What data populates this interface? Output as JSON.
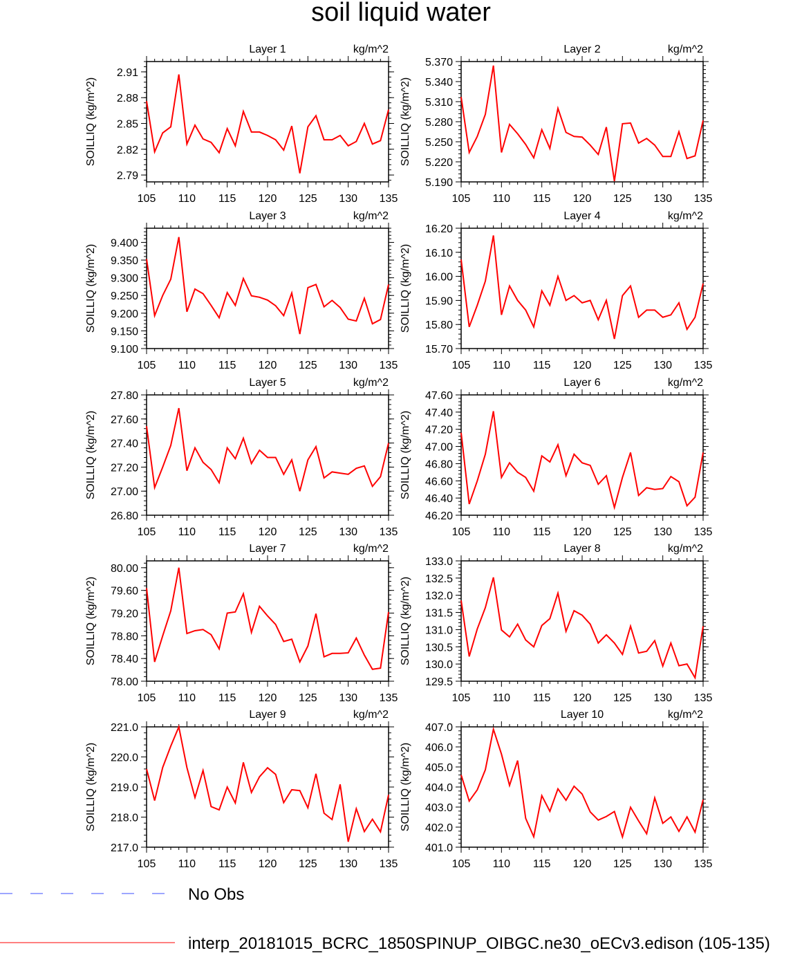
{
  "title": "soil liquid water",
  "legend": [
    {
      "label": "No Obs",
      "color": "#3b4cff",
      "dash": true
    },
    {
      "label": "interp_20181015_BCRC_1850SPINUP_OIBGC.ne30_oECv3.edison (105-135)",
      "color": "#ff0000",
      "dash": false
    }
  ],
  "chart_data": [
    {
      "type": "line",
      "title": "Layer 1",
      "units": "kg/m^2",
      "ylabel": "SOILLIQ  (kg/m^2)",
      "xlim": [
        105,
        135
      ],
      "xticks": [
        105,
        110,
        115,
        120,
        125,
        130,
        135
      ],
      "ylim": [
        2.782,
        2.922
      ],
      "yticks": [
        "2.79",
        "2.82",
        "2.85",
        "2.88",
        "2.91"
      ],
      "ytick_values": [
        2.79,
        2.82,
        2.85,
        2.88,
        2.91
      ],
      "x": [
        105,
        106,
        107,
        108,
        109,
        110,
        111,
        112,
        113,
        114,
        115,
        116,
        117,
        118,
        119,
        120,
        121,
        122,
        123,
        124,
        125,
        126,
        127,
        128,
        129,
        130,
        131,
        132,
        133,
        134,
        135
      ],
      "series": [
        {
          "values": [
            2.876,
            2.817,
            2.839,
            2.846,
            2.907,
            2.826,
            2.848,
            2.832,
            2.828,
            2.816,
            2.844,
            2.824,
            2.864,
            2.84,
            2.84,
            2.836,
            2.831,
            2.819,
            2.847,
            2.792,
            2.846,
            2.859,
            2.831,
            2.831,
            2.836,
            2.824,
            2.829,
            2.85,
            2.826,
            2.83,
            2.866
          ],
          "color": "#ff0000"
        }
      ]
    },
    {
      "type": "line",
      "title": "Layer 2",
      "units": "kg/m^2",
      "ylabel": "SOILLIQ  (kg/m^2)",
      "xlim": [
        105,
        135
      ],
      "xticks": [
        105,
        110,
        115,
        120,
        125,
        130,
        135
      ],
      "ylim": [
        5.19,
        5.37
      ],
      "yticks": [
        "5.190",
        "5.220",
        "5.250",
        "5.280",
        "5.310",
        "5.340",
        "5.370"
      ],
      "ytick_values": [
        5.19,
        5.22,
        5.25,
        5.28,
        5.31,
        5.34,
        5.37
      ],
      "x": [
        105,
        106,
        107,
        108,
        109,
        110,
        111,
        112,
        113,
        114,
        115,
        116,
        117,
        118,
        119,
        120,
        121,
        122,
        123,
        124,
        125,
        126,
        127,
        128,
        129,
        130,
        131,
        132,
        133,
        134,
        135
      ],
      "series": [
        {
          "values": [
            5.317,
            5.234,
            5.258,
            5.291,
            5.364,
            5.234,
            5.276,
            5.262,
            5.246,
            5.226,
            5.268,
            5.24,
            5.3,
            5.264,
            5.258,
            5.257,
            5.245,
            5.231,
            5.272,
            5.191,
            5.277,
            5.278,
            5.248,
            5.255,
            5.245,
            5.228,
            5.228,
            5.265,
            5.225,
            5.229,
            5.282
          ],
          "color": "#ff0000"
        }
      ]
    },
    {
      "type": "line",
      "title": "Layer 3",
      "units": "kg/m^2",
      "ylabel": "SOILLIQ  (kg/m^2)",
      "xlim": [
        105,
        135
      ],
      "xticks": [
        105,
        110,
        115,
        120,
        125,
        130,
        135
      ],
      "ylim": [
        9.1,
        9.44
      ],
      "yticks": [
        "9.100",
        "9.150",
        "9.200",
        "9.250",
        "9.300",
        "9.350",
        "9.400"
      ],
      "ytick_values": [
        9.1,
        9.15,
        9.2,
        9.25,
        9.3,
        9.35,
        9.4
      ],
      "x": [
        105,
        106,
        107,
        108,
        109,
        110,
        111,
        112,
        113,
        114,
        115,
        116,
        117,
        118,
        119,
        120,
        121,
        122,
        123,
        124,
        125,
        126,
        127,
        128,
        129,
        130,
        131,
        132,
        133,
        134,
        135
      ],
      "series": [
        {
          "values": [
            9.353,
            9.193,
            9.25,
            9.296,
            9.415,
            9.204,
            9.268,
            9.255,
            9.222,
            9.187,
            9.258,
            9.222,
            9.298,
            9.249,
            9.245,
            9.237,
            9.221,
            9.193,
            9.257,
            9.141,
            9.272,
            9.281,
            9.218,
            9.236,
            9.216,
            9.183,
            9.178,
            9.242,
            9.17,
            9.182,
            9.281
          ],
          "color": "#ff0000"
        }
      ]
    },
    {
      "type": "line",
      "title": "Layer 4",
      "units": "kg/m^2",
      "ylabel": "SOILLIQ  (kg/m^2)",
      "xlim": [
        105,
        135
      ],
      "xticks": [
        105,
        110,
        115,
        120,
        125,
        130,
        135
      ],
      "ylim": [
        15.7,
        16.2
      ],
      "yticks": [
        "15.70",
        "15.80",
        "15.90",
        "16.00",
        "16.10",
        "16.20"
      ],
      "ytick_values": [
        15.7,
        15.8,
        15.9,
        16.0,
        16.1,
        16.2
      ],
      "x": [
        105,
        106,
        107,
        108,
        109,
        110,
        111,
        112,
        113,
        114,
        115,
        116,
        117,
        118,
        119,
        120,
        121,
        122,
        123,
        124,
        125,
        126,
        127,
        128,
        129,
        130,
        131,
        132,
        133,
        134,
        135
      ],
      "series": [
        {
          "values": [
            16.07,
            15.79,
            15.88,
            15.98,
            16.17,
            15.84,
            15.96,
            15.9,
            15.86,
            15.79,
            15.94,
            15.88,
            16.0,
            15.9,
            15.92,
            15.89,
            15.9,
            15.82,
            15.9,
            15.74,
            15.92,
            15.96,
            15.83,
            15.86,
            15.86,
            15.83,
            15.84,
            15.89,
            15.78,
            15.83,
            15.97
          ],
          "color": "#ff0000"
        }
      ]
    },
    {
      "type": "line",
      "title": "Layer 5",
      "units": "kg/m^2",
      "ylabel": "SOILLIQ  (kg/m^2)",
      "xlim": [
        105,
        135
      ],
      "xticks": [
        105,
        110,
        115,
        120,
        125,
        130,
        135
      ],
      "ylim": [
        26.8,
        27.8
      ],
      "yticks": [
        "26.80",
        "27.00",
        "27.20",
        "27.40",
        "27.60",
        "27.80"
      ],
      "ytick_values": [
        26.8,
        27.0,
        27.2,
        27.4,
        27.6,
        27.8
      ],
      "x": [
        105,
        106,
        107,
        108,
        109,
        110,
        111,
        112,
        113,
        114,
        115,
        116,
        117,
        118,
        119,
        120,
        121,
        122,
        123,
        124,
        125,
        126,
        127,
        128,
        129,
        130,
        131,
        132,
        133,
        134,
        135
      ],
      "series": [
        {
          "values": [
            27.54,
            27.03,
            27.2,
            27.38,
            27.69,
            27.17,
            27.36,
            27.24,
            27.18,
            27.07,
            27.36,
            27.27,
            27.44,
            27.23,
            27.34,
            27.28,
            27.28,
            27.14,
            27.26,
            27.0,
            27.26,
            27.37,
            27.11,
            27.16,
            27.15,
            27.14,
            27.19,
            27.21,
            27.04,
            27.12,
            27.4
          ],
          "color": "#ff0000"
        }
      ]
    },
    {
      "type": "line",
      "title": "Layer 6",
      "units": "kg/m^2",
      "ylabel": "SOILLIQ  (kg/m^2)",
      "xlim": [
        105,
        135
      ],
      "xticks": [
        105,
        110,
        115,
        120,
        125,
        130,
        135
      ],
      "ylim": [
        46.2,
        47.6
      ],
      "yticks": [
        "46.20",
        "46.40",
        "46.60",
        "46.80",
        "47.00",
        "47.20",
        "47.40",
        "47.60"
      ],
      "ytick_values": [
        46.2,
        46.4,
        46.6,
        46.8,
        47.0,
        47.2,
        47.4,
        47.6
      ],
      "x": [
        105,
        106,
        107,
        108,
        109,
        110,
        111,
        112,
        113,
        114,
        115,
        116,
        117,
        118,
        119,
        120,
        121,
        122,
        123,
        124,
        125,
        126,
        127,
        128,
        129,
        130,
        131,
        132,
        133,
        134,
        135
      ],
      "series": [
        {
          "values": [
            47.16,
            46.33,
            46.6,
            46.91,
            47.41,
            46.64,
            46.81,
            46.7,
            46.64,
            46.48,
            46.89,
            46.82,
            47.02,
            46.66,
            46.91,
            46.81,
            46.78,
            46.56,
            46.66,
            46.29,
            46.64,
            46.93,
            46.43,
            46.52,
            46.5,
            46.51,
            46.65,
            46.59,
            46.31,
            46.41,
            46.93
          ],
          "color": "#ff0000"
        }
      ]
    },
    {
      "type": "line",
      "title": "Layer 7",
      "units": "kg/m^2",
      "ylabel": "SOILLIQ  (kg/m^2)",
      "xlim": [
        105,
        135
      ],
      "xticks": [
        105,
        110,
        115,
        120,
        125,
        130,
        135
      ],
      "ylim": [
        78.0,
        80.12
      ],
      "yticks": [
        "78.00",
        "78.40",
        "78.80",
        "79.20",
        "79.60",
        "80.00"
      ],
      "ytick_values": [
        78.0,
        78.4,
        78.8,
        79.2,
        79.6,
        80.0
      ],
      "x": [
        105,
        106,
        107,
        108,
        109,
        110,
        111,
        112,
        113,
        114,
        115,
        116,
        117,
        118,
        119,
        120,
        121,
        122,
        123,
        124,
        125,
        126,
        127,
        128,
        129,
        130,
        131,
        132,
        133,
        134,
        135
      ],
      "series": [
        {
          "values": [
            79.64,
            78.34,
            78.8,
            79.24,
            80.0,
            78.84,
            78.89,
            78.91,
            78.82,
            78.57,
            79.2,
            79.22,
            79.54,
            78.86,
            79.32,
            79.15,
            79.0,
            78.7,
            78.74,
            78.34,
            78.62,
            79.19,
            78.43,
            78.49,
            78.49,
            78.5,
            78.76,
            78.46,
            78.21,
            78.23,
            79.22
          ],
          "color": "#ff0000"
        }
      ]
    },
    {
      "type": "line",
      "title": "Layer 8",
      "units": "kg/m^2",
      "ylabel": "SOILLIQ  (kg/m^2)",
      "xlim": [
        105,
        135
      ],
      "xticks": [
        105,
        110,
        115,
        120,
        125,
        130,
        135
      ],
      "ylim": [
        129.5,
        133.0
      ],
      "yticks": [
        "129.5",
        "130.0",
        "130.5",
        "131.0",
        "131.5",
        "132.0",
        "132.5",
        "133.0"
      ],
      "ytick_values": [
        129.5,
        130.0,
        130.5,
        131.0,
        131.5,
        132.0,
        132.5,
        133.0
      ],
      "x": [
        105,
        106,
        107,
        108,
        109,
        110,
        111,
        112,
        113,
        114,
        115,
        116,
        117,
        118,
        119,
        120,
        121,
        122,
        123,
        124,
        125,
        126,
        127,
        128,
        129,
        130,
        131,
        132,
        133,
        134,
        135
      ],
      "series": [
        {
          "values": [
            131.85,
            130.22,
            131.02,
            131.64,
            132.52,
            130.99,
            130.79,
            131.16,
            130.7,
            130.5,
            131.12,
            131.32,
            132.06,
            130.95,
            131.55,
            131.42,
            131.16,
            130.61,
            130.85,
            130.61,
            130.28,
            131.1,
            130.32,
            130.37,
            130.68,
            129.94,
            130.61,
            129.95,
            130.0,
            129.6,
            131.1
          ],
          "color": "#ff0000"
        }
      ]
    },
    {
      "type": "line",
      "title": "Layer 9",
      "units": "kg/m^2",
      "ylabel": "SOILLIQ  (kg/m^2)",
      "xlim": [
        105,
        135
      ],
      "xticks": [
        105,
        110,
        115,
        120,
        125,
        130,
        135
      ],
      "ylim": [
        217.0,
        221.0
      ],
      "yticks": [
        "217.0",
        "218.0",
        "219.0",
        "220.0",
        "221.0"
      ],
      "ytick_values": [
        217.0,
        218.0,
        219.0,
        220.0,
        221.0
      ],
      "x": [
        105,
        106,
        107,
        108,
        109,
        110,
        111,
        112,
        113,
        114,
        115,
        116,
        117,
        118,
        119,
        120,
        121,
        122,
        123,
        124,
        125,
        126,
        127,
        128,
        129,
        130,
        131,
        132,
        133,
        134,
        135
      ],
      "series": [
        {
          "values": [
            219.6,
            218.55,
            219.65,
            220.36,
            221.0,
            219.65,
            218.65,
            219.55,
            218.35,
            218.24,
            219.0,
            218.47,
            219.82,
            218.82,
            219.34,
            219.64,
            219.42,
            218.48,
            218.91,
            218.88,
            218.31,
            219.44,
            218.13,
            217.92,
            219.09,
            217.18,
            218.28,
            217.52,
            217.93,
            217.51,
            218.74
          ],
          "color": "#ff0000"
        }
      ]
    },
    {
      "type": "line",
      "title": "Layer 10",
      "units": "kg/m^2",
      "ylabel": "SOILLIQ  (kg/m^2)",
      "xlim": [
        105,
        135
      ],
      "xticks": [
        105,
        110,
        115,
        120,
        125,
        130,
        135
      ],
      "ylim": [
        401.0,
        407.0
      ],
      "yticks": [
        "401.0",
        "402.0",
        "403.0",
        "404.0",
        "405.0",
        "406.0",
        "407.0"
      ],
      "ytick_values": [
        401.0,
        402.0,
        403.0,
        404.0,
        405.0,
        406.0,
        407.0
      ],
      "x": [
        105,
        106,
        107,
        108,
        109,
        110,
        111,
        112,
        113,
        114,
        115,
        116,
        117,
        118,
        119,
        120,
        121,
        122,
        123,
        124,
        125,
        126,
        127,
        128,
        129,
        130,
        131,
        132,
        133,
        134,
        135
      ],
      "series": [
        {
          "values": [
            404.6,
            403.3,
            403.86,
            404.86,
            406.88,
            405.64,
            404.08,
            405.32,
            402.44,
            401.52,
            403.57,
            402.79,
            403.91,
            403.34,
            404.04,
            403.65,
            402.76,
            402.35,
            402.53,
            402.78,
            401.51,
            402.99,
            402.31,
            401.67,
            403.46,
            402.19,
            402.51,
            401.79,
            402.51,
            401.75,
            403.37
          ],
          "color": "#ff0000"
        }
      ]
    }
  ]
}
